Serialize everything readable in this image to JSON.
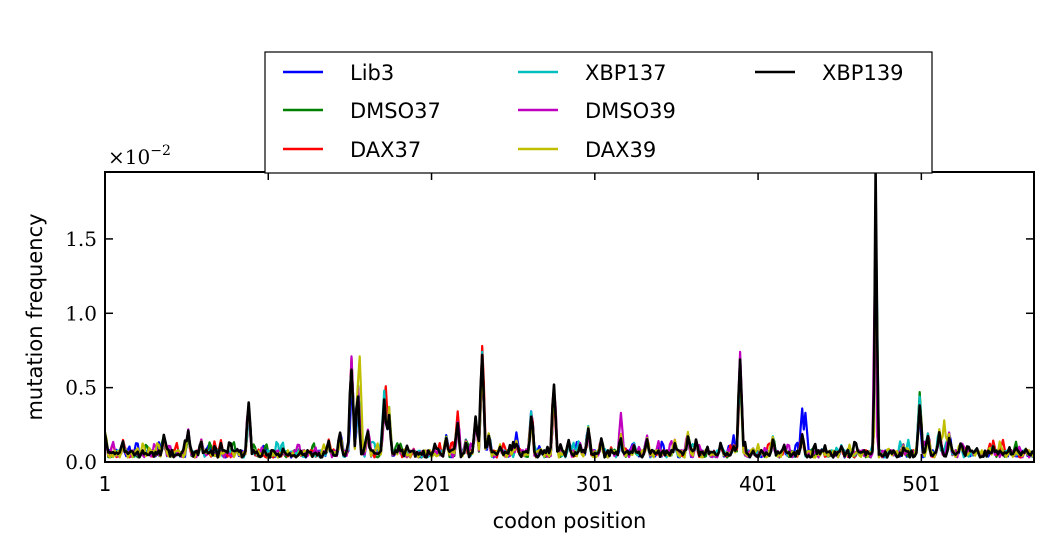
{
  "chart_data": {
    "type": "line",
    "xlabel": "codon position",
    "ylabel": "mutation frequency",
    "offset_text": "×10",
    "offset_exponent": "−2",
    "xlim": [
      1,
      570
    ],
    "ylim": [
      0,
      1.95
    ],
    "x_ticks": [
      1,
      101,
      201,
      301,
      401,
      501
    ],
    "y_ticks": [
      0.0,
      0.5,
      1.0,
      1.5
    ],
    "y_tick_labels": [
      "0.0",
      "0.5",
      "1.0",
      "1.5"
    ],
    "grid": false,
    "legend_placement": "top-center",
    "legend_columns": 3,
    "series": [
      {
        "name": "Lib3",
        "color": "#0000ff",
        "peaks": [
          [
            428,
            0.36
          ],
          [
            430,
            0.33
          ],
          [
            386,
            0.18
          ],
          [
            253,
            0.2
          ]
        ]
      },
      {
        "name": "DMSO37",
        "color": "#008000",
        "peaks": [
          [
            500,
            0.47
          ],
          [
            152,
            0.68
          ]
        ]
      },
      {
        "name": "DAX37",
        "color": "#ff0000",
        "peaks": [
          [
            232,
            0.78
          ],
          [
            173,
            0.51
          ],
          [
            152,
            0.7
          ],
          [
            217,
            0.34
          ]
        ]
      },
      {
        "name": "XBP137",
        "color": "#00bfbf",
        "peaks": [
          [
            232,
            0.74
          ],
          [
            500,
            0.44
          ],
          [
            152,
            0.66
          ],
          [
            172,
            0.48
          ]
        ]
      },
      {
        "name": "DMSO39",
        "color": "#bf00bf",
        "peaks": [
          [
            390,
            0.74
          ],
          [
            317,
            0.33
          ],
          [
            152,
            0.71
          ]
        ]
      },
      {
        "name": "DAX39",
        "color": "#bfbf00",
        "peaks": [
          [
            157,
            0.71
          ],
          [
            152,
            0.62
          ],
          [
            515,
            0.28
          ]
        ]
      },
      {
        "name": "XBP139",
        "color": "#000000",
        "peaks": [
          [
            473,
            1.95
          ],
          [
            152,
            0.62
          ],
          [
            232,
            0.72
          ],
          [
            390,
            0.68
          ],
          [
            276,
            0.52
          ],
          [
            172,
            0.42
          ],
          [
            89,
            0.4
          ]
        ]
      }
    ],
    "base_peaks": [
      [
        1,
        0.22
      ],
      [
        12,
        0.15
      ],
      [
        37,
        0.19
      ],
      [
        52,
        0.22
      ],
      [
        60,
        0.15
      ],
      [
        72,
        0.07
      ],
      [
        82,
        0.09
      ],
      [
        89,
        0.38
      ],
      [
        110,
        0.09
      ],
      [
        126,
        0.07
      ],
      [
        138,
        0.15
      ],
      [
        145,
        0.2
      ],
      [
        152,
        0.62
      ],
      [
        156,
        0.55
      ],
      [
        162,
        0.22
      ],
      [
        172,
        0.42
      ],
      [
        175,
        0.38
      ],
      [
        181,
        0.12
      ],
      [
        190,
        0.09
      ],
      [
        203,
        0.07
      ],
      [
        210,
        0.18
      ],
      [
        217,
        0.28
      ],
      [
        222,
        0.15
      ],
      [
        228,
        0.3
      ],
      [
        232,
        0.72
      ],
      [
        236,
        0.2
      ],
      [
        243,
        0.12
      ],
      [
        253,
        0.15
      ],
      [
        262,
        0.35
      ],
      [
        268,
        0.08
      ],
      [
        276,
        0.52
      ],
      [
        285,
        0.15
      ],
      [
        292,
        0.13
      ],
      [
        297,
        0.25
      ],
      [
        305,
        0.16
      ],
      [
        311,
        0.1
      ],
      [
        317,
        0.2
      ],
      [
        325,
        0.13
      ],
      [
        333,
        0.18
      ],
      [
        340,
        0.09
      ],
      [
        350,
        0.15
      ],
      [
        358,
        0.2
      ],
      [
        363,
        0.15
      ],
      [
        370,
        0.1
      ],
      [
        378,
        0.13
      ],
      [
        386,
        0.12
      ],
      [
        390,
        0.68
      ],
      [
        398,
        0.09
      ],
      [
        410,
        0.18
      ],
      [
        417,
        0.12
      ],
      [
        428,
        0.2
      ],
      [
        440,
        0.09
      ],
      [
        452,
        0.12
      ],
      [
        462,
        0.09
      ],
      [
        473,
        1.95
      ],
      [
        482,
        0.08
      ],
      [
        490,
        0.12
      ],
      [
        500,
        0.4
      ],
      [
        505,
        0.2
      ],
      [
        512,
        0.22
      ],
      [
        518,
        0.2
      ],
      [
        525,
        0.13
      ],
      [
        535,
        0.09
      ],
      [
        545,
        0.12
      ],
      [
        555,
        0.1
      ],
      [
        565,
        0.09
      ]
    ]
  }
}
